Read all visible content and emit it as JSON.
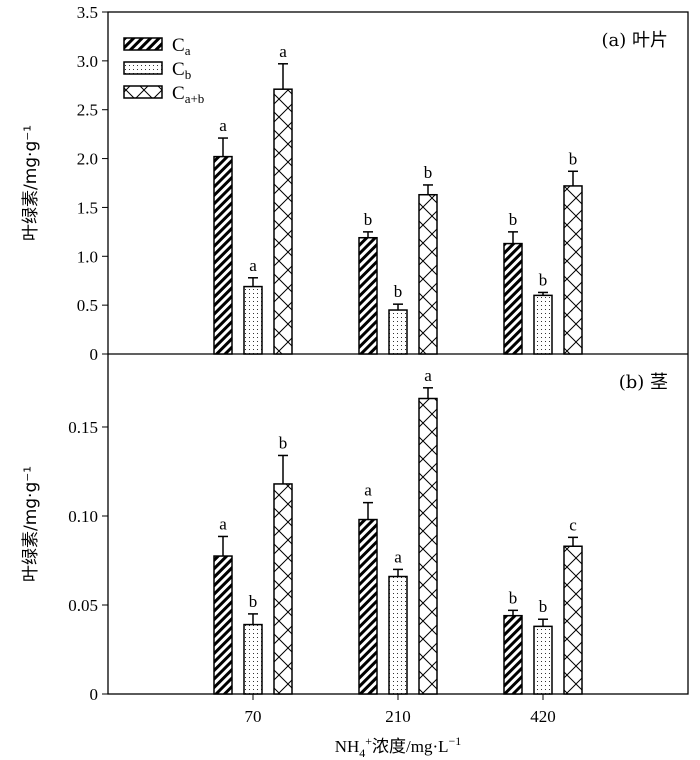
{
  "chart_data": [
    {
      "type": "bar",
      "title": "(a) 叶片",
      "ylabel": "叶绿素/mg·g⁻¹",
      "ylim": [
        0,
        3.5
      ],
      "yticks": [
        "0",
        "0.5",
        "1.0",
        "1.5",
        "2.0",
        "2.5",
        "3.0",
        "3.5"
      ],
      "ytick_values": [
        0,
        0.5,
        1.0,
        1.5,
        2.0,
        2.5,
        3.0,
        3.5
      ],
      "categories": [
        "70",
        "210",
        "420"
      ],
      "series": [
        {
          "name": "Ca",
          "values": [
            2.02,
            1.19,
            1.13
          ],
          "errors": [
            0.19,
            0.06,
            0.12
          ],
          "letters": [
            "a",
            "b",
            "b"
          ]
        },
        {
          "name": "Cb",
          "values": [
            0.69,
            0.45,
            0.6
          ],
          "errors": [
            0.09,
            0.06,
            0.03
          ],
          "letters": [
            "a",
            "b",
            "b"
          ]
        },
        {
          "name": "Ca+b",
          "values": [
            2.71,
            1.63,
            1.72
          ],
          "errors": [
            0.26,
            0.1,
            0.15
          ],
          "letters": [
            "a",
            "b",
            "b"
          ]
        }
      ],
      "legend": {
        "placement": "top-left",
        "entries": [
          {
            "main": "C",
            "sub": "a"
          },
          {
            "main": "C",
            "sub": "b"
          },
          {
            "main": "C",
            "sub": "a+b"
          }
        ]
      }
    },
    {
      "type": "bar",
      "title": "(b) 茎",
      "ylabel": "叶绿素/mg·g⁻¹",
      "ylim": [
        0,
        0.191
      ],
      "yticks": [
        "0",
        "0.05",
        "0.10",
        "0.15"
      ],
      "ytick_values": [
        0,
        0.05,
        0.1,
        0.15
      ],
      "categories": [
        "70",
        "210",
        "420"
      ],
      "xlabel": "NH4+浓度/mg·L-1",
      "series": [
        {
          "name": "Ca",
          "values": [
            0.0775,
            0.098,
            0.044
          ],
          "errors": [
            0.011,
            0.0095,
            0.003
          ],
          "letters": [
            "a",
            "a",
            "b"
          ]
        },
        {
          "name": "Cb",
          "values": [
            0.039,
            0.066,
            0.038
          ],
          "errors": [
            0.006,
            0.004,
            0.004
          ],
          "letters": [
            "b",
            "a",
            "b"
          ]
        },
        {
          "name": "Ca+b",
          "values": [
            0.118,
            0.166,
            0.083
          ],
          "errors": [
            0.016,
            0.006,
            0.005
          ],
          "letters": [
            "b",
            "a",
            "c"
          ]
        }
      ]
    }
  ],
  "xlabel_parts": {
    "a": "NH",
    "b": "4",
    "c": "+",
    "d": "浓度/mg·L",
    "e": "−1"
  }
}
